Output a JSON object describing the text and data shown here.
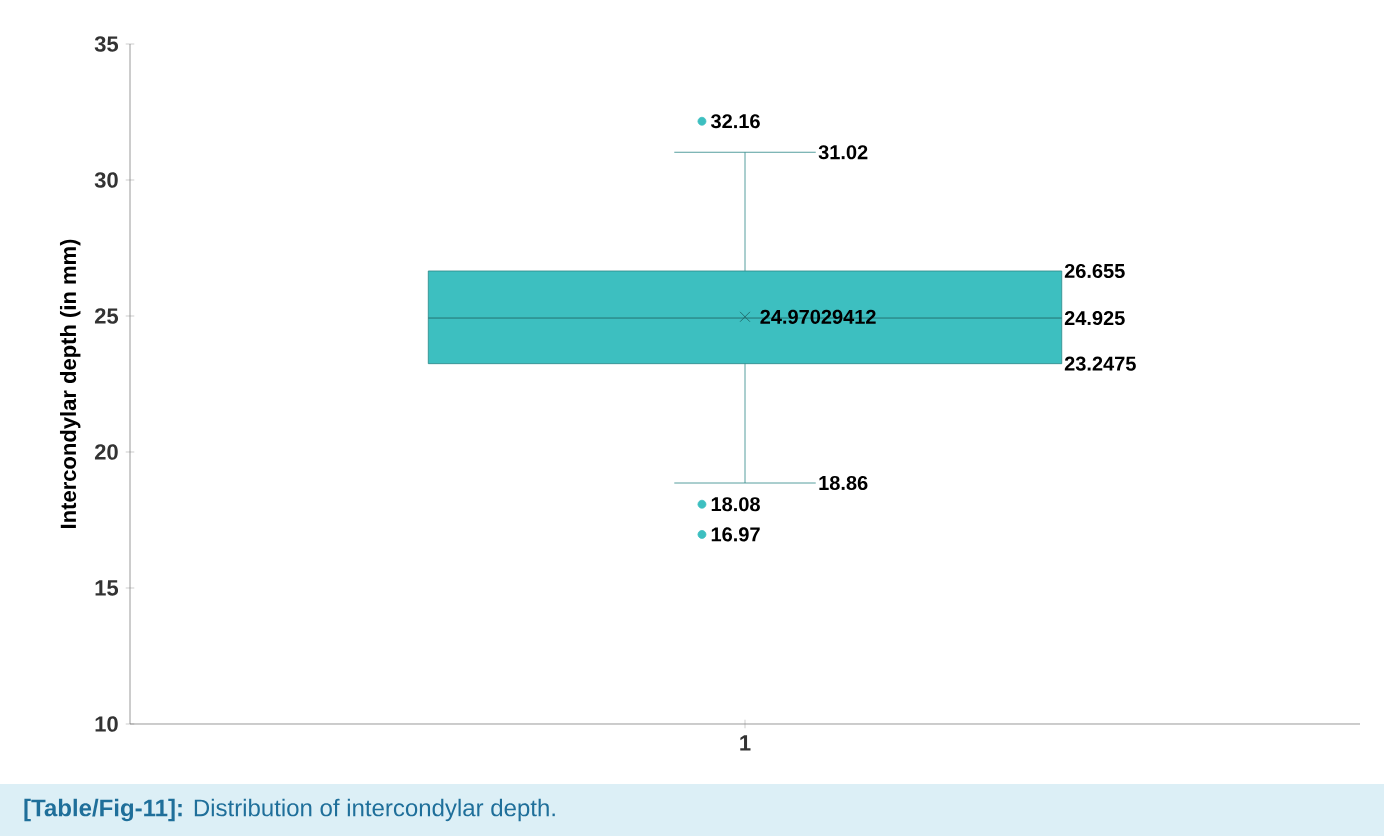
{
  "chart_data": {
    "type": "box",
    "categories": [
      "1"
    ],
    "boxes": [
      {
        "low": 18.86,
        "q1": 23.2475,
        "median": 24.925,
        "q3": 26.655,
        "high": 31.02,
        "mean": 24.97029412,
        "outliers": [
          32.16,
          18.08,
          16.97
        ]
      }
    ],
    "color": "#3dbfc0",
    "ylabel": "Intercondylar depth (in mm)",
    "ylim": [
      10,
      35
    ],
    "yticks": [
      10,
      15,
      20,
      25,
      30,
      35
    ],
    "grid": false,
    "annotations": [
      "**[Table/Fig-11]:** Distribution of intercondylar depth.",
      "32.16",
      "31.02",
      "26.655",
      "24.97029412",
      "24.925",
      "23.2475",
      "18.86",
      "18.08",
      "16.97"
    ]
  }
}
